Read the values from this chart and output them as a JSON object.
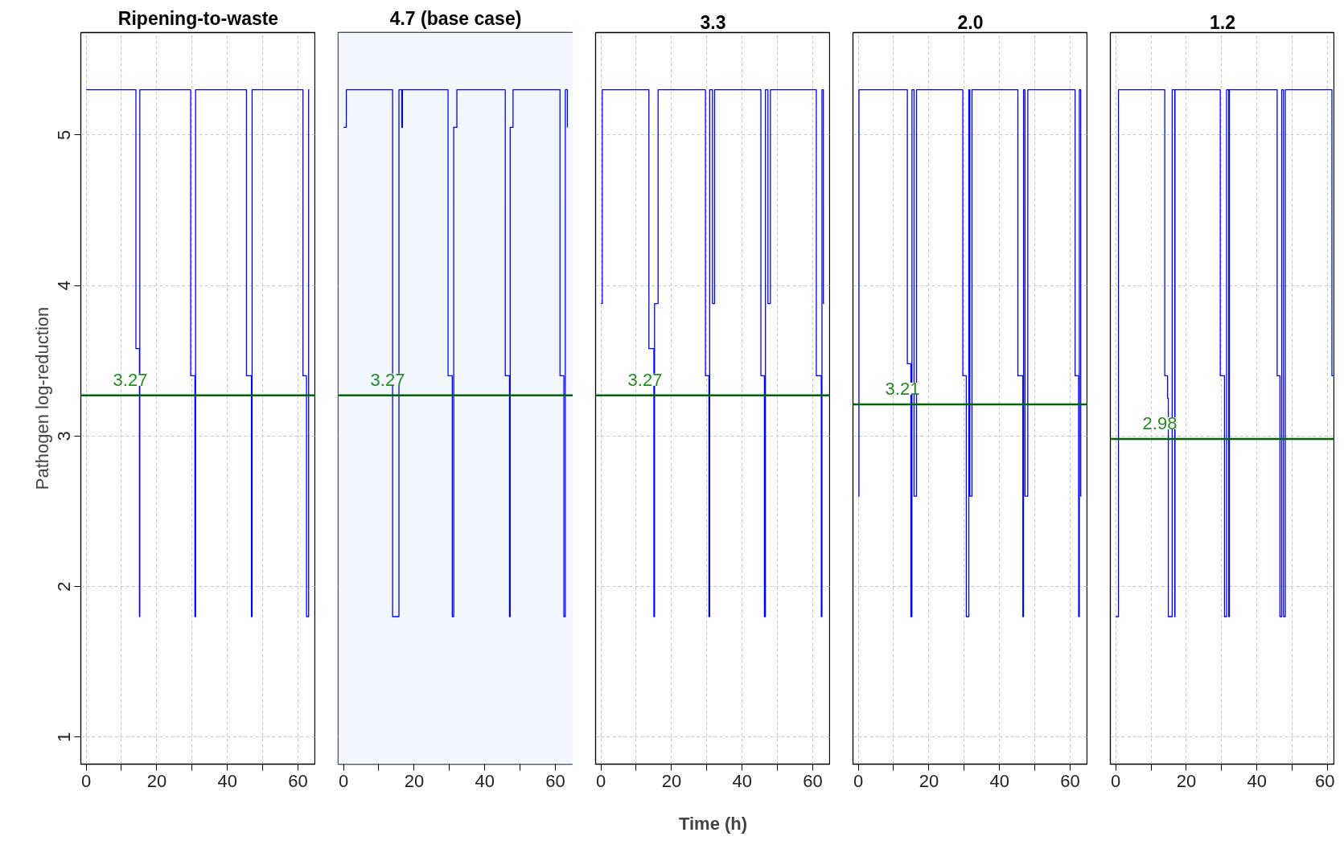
{
  "chart_data": [
    {
      "type": "step",
      "title": "Ripening-to-waste",
      "ylabel": "Pathogen log-reduction",
      "xlim": [
        -1.5,
        65
      ],
      "ylim": [
        0.82,
        5.68
      ],
      "xticks": [
        0,
        {
          "value": 10,
          "label": null
        },
        20,
        {
          "value": 30,
          "label": null
        },
        40,
        {
          "value": 50,
          "label": null
        },
        60
      ],
      "yticks": [
        1,
        2,
        3,
        4,
        5
      ],
      "grid": true,
      "series": [
        {
          "color": "#0000ff",
          "x": [
            0,
            14.1,
            15.1,
            15.2,
            29.6,
            30.8,
            31.0,
            45.4,
            46.8,
            47.0,
            61.4,
            62.4,
            63.0,
            63.2
          ],
          "values": [
            5.3,
            3.58,
            1.8,
            5.3,
            3.4,
            1.8,
            5.3,
            3.4,
            1.8,
            5.3,
            3.4,
            1.8,
            5.3,
            5.3
          ]
        }
      ],
      "ref_lines": [
        {
          "axis": "y",
          "value": 3.27,
          "label": "3.27",
          "color": "#006400"
        }
      ]
    },
    {
      "type": "step",
      "title": "4.7 (base case)",
      "xlim": [
        -1.5,
        65
      ],
      "ylim": [
        0.82,
        5.68
      ],
      "xticks": [
        0,
        {
          "value": 10,
          "label": null
        },
        20,
        {
          "value": 30,
          "label": null
        },
        40,
        {
          "value": 50,
          "label": null
        },
        60
      ],
      "yticks": [
        1,
        2,
        3,
        4,
        5
      ],
      "grid": true,
      "tick_labels": "x",
      "series": [
        {
          "color": "#0000ff",
          "x": [
            0,
            0.8,
            13.9,
            15.7,
            16.5,
            16.7,
            29.6,
            30.8,
            31.2,
            32.1,
            45.8,
            47.0,
            47.2,
            48.0,
            61.3,
            62.4,
            62.8,
            63.4
          ],
          "values": [
            5.05,
            5.3,
            1.8,
            5.3,
            5.05,
            5.3,
            3.4,
            1.8,
            5.05,
            5.3,
            3.4,
            1.8,
            5.05,
            5.3,
            3.4,
            1.8,
            5.3,
            5.05
          ]
        }
      ],
      "ref_lines": [
        {
          "axis": "y",
          "value": 3.27,
          "label": "3.27",
          "color": "#006400"
        }
      ],
      "bands": [
        {
          "axis": "x",
          "from": -1.5,
          "to": 65,
          "color": "#f2f7fd"
        }
      ]
    },
    {
      "type": "step",
      "title": "3.3",
      "xlim": [
        -1.5,
        65
      ],
      "ylim": [
        0.82,
        5.68
      ],
      "xticks": [
        0,
        {
          "value": 10,
          "label": null
        },
        20,
        {
          "value": 30,
          "label": null
        },
        40,
        {
          "value": 50,
          "label": null
        },
        60
      ],
      "yticks": [
        1,
        2,
        3,
        4,
        5
      ],
      "grid": true,
      "tick_labels": "x",
      "series": [
        {
          "color": "#0000ff",
          "x": [
            0,
            0.4,
            13.6,
            15.0,
            15.2,
            16.2,
            29.6,
            30.6,
            30.8,
            31.6,
            32.2,
            45.3,
            46.3,
            46.6,
            47.3,
            48.0,
            61.0,
            62.4,
            62.6,
            63.0,
            63.2
          ],
          "values": [
            3.88,
            5.3,
            3.58,
            1.8,
            3.88,
            5.3,
            3.4,
            1.8,
            5.3,
            3.88,
            5.3,
            3.4,
            1.8,
            5.3,
            3.88,
            5.3,
            3.4,
            1.8,
            5.3,
            3.88,
            3.88
          ]
        }
      ],
      "ref_lines": [
        {
          "axis": "y",
          "value": 3.27,
          "label": "3.27",
          "color": "#006400"
        }
      ],
      "xlabel": "Time (h)"
    },
    {
      "type": "step",
      "title": "2.0",
      "xlim": [
        -1.5,
        65
      ],
      "ylim": [
        0.82,
        5.68
      ],
      "xticks": [
        0,
        {
          "value": 10,
          "label": null
        },
        20,
        {
          "value": 30,
          "label": null
        },
        40,
        {
          "value": 50,
          "label": null
        },
        60
      ],
      "yticks": [
        1,
        2,
        3,
        4,
        5
      ],
      "grid": true,
      "tick_labels": "x",
      "series": [
        {
          "color": "#0000ff",
          "x": [
            0,
            0.2,
            13.9,
            14.9,
            15.2,
            15.8,
            16.5,
            29.6,
            30.6,
            31.3,
            31.6,
            32.2,
            45.2,
            46.6,
            46.8,
            47.2,
            48.0,
            61.4,
            62.4,
            62.6,
            63.0,
            63.2
          ],
          "values": [
            2.6,
            5.3,
            3.48,
            1.8,
            5.3,
            2.6,
            5.3,
            3.4,
            1.8,
            5.3,
            2.6,
            5.3,
            3.4,
            1.8,
            5.3,
            2.6,
            5.3,
            3.4,
            1.8,
            5.3,
            2.6,
            2.6
          ]
        }
      ],
      "ref_lines": [
        {
          "axis": "y",
          "value": 3.21,
          "label": "3.21",
          "color": "#006400"
        }
      ]
    },
    {
      "type": "step",
      "title": "1.2",
      "xlim": [
        -1.5,
        62
      ],
      "ylim": [
        0.82,
        5.68
      ],
      "xticks": [
        0,
        {
          "value": 10,
          "label": null
        },
        20,
        {
          "value": 30,
          "label": null
        },
        40,
        {
          "value": 50,
          "label": null
        },
        60
      ],
      "yticks": [
        1,
        2,
        3,
        4,
        5
      ],
      "grid": true,
      "tick_labels": "x",
      "series": [
        {
          "color": "#0000ff",
          "x": [
            0,
            0.8,
            13.9,
            14.7,
            14.9,
            16.0,
            16.7,
            16.8,
            29.6,
            30.8,
            31.4,
            32.0,
            32.2,
            45.7,
            46.5,
            47.0,
            47.5,
            48.0,
            61.2,
            62.0
          ],
          "values": [
            1.8,
            5.3,
            3.4,
            3.25,
            1.8,
            5.3,
            1.8,
            5.3,
            3.4,
            1.8,
            5.3,
            1.8,
            5.3,
            3.4,
            1.8,
            5.3,
            1.8,
            5.3,
            3.4,
            3.4
          ]
        }
      ],
      "ref_lines": [
        {
          "axis": "y",
          "value": 2.98,
          "label": "2.98",
          "color": "#006400"
        }
      ]
    }
  ]
}
